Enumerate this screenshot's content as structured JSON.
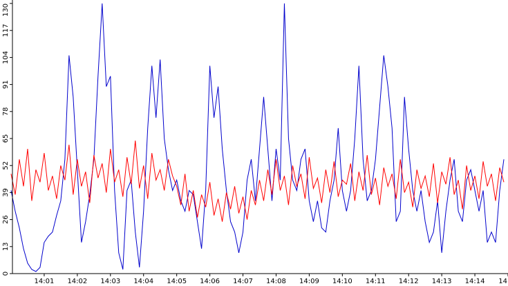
{
  "chart_data": {
    "type": "line",
    "x": [
      0,
      0.125,
      0.25,
      0.375,
      0.5,
      0.625,
      0.75,
      0.875,
      1,
      1.125,
      1.25,
      1.375,
      1.5,
      1.625,
      1.75,
      1.875,
      2,
      2.125,
      2.25,
      2.375,
      2.5,
      2.625,
      2.75,
      2.875,
      3,
      3.125,
      3.25,
      3.375,
      3.5,
      3.625,
      3.75,
      3.875,
      4,
      4.125,
      4.25,
      4.375,
      4.5,
      4.625,
      4.75,
      4.875,
      5,
      5.125,
      5.25,
      5.375,
      5.5,
      5.625,
      5.75,
      5.875,
      6,
      6.125,
      6.25,
      6.375,
      6.5,
      6.625,
      6.75,
      6.875,
      7,
      7.125,
      7.25,
      7.375,
      7.5,
      7.625,
      7.75,
      7.875,
      8,
      8.125,
      8.25,
      8.375,
      8.5,
      8.625,
      8.75,
      8.875,
      9,
      9.125,
      9.25,
      9.375,
      9.5,
      9.625,
      9.75,
      9.875,
      10,
      10.125,
      10.25,
      10.375,
      10.5,
      10.625,
      10.75,
      10.875,
      11,
      11.125,
      11.25,
      11.375,
      11.5,
      11.625,
      11.75,
      11.875,
      12,
      12.125,
      12.25,
      12.375,
      12.5,
      12.625,
      12.75,
      12.875,
      13,
      13.125,
      13.25,
      13.375,
      13.5,
      13.625,
      13.75,
      13.875,
      14,
      14.125,
      14.25,
      14.375,
      14.5,
      14.625,
      14.75,
      14.875
    ],
    "series": [
      {
        "color": "#0000cc",
        "values": [
          40,
          30,
          22,
          12,
          5,
          2,
          1,
          3,
          15,
          18,
          20,
          28,
          35,
          55,
          105,
          85,
          50,
          15,
          25,
          38,
          55,
          95,
          130,
          90,
          95,
          40,
          10,
          2,
          40,
          45,
          20,
          3,
          30,
          70,
          100,
          75,
          103,
          65,
          50,
          40,
          45,
          35,
          30,
          40,
          38,
          25,
          12,
          40,
          100,
          75,
          90,
          60,
          40,
          25,
          20,
          10,
          20,
          45,
          55,
          35,
          60,
          85,
          60,
          35,
          60,
          45,
          130,
          65,
          45,
          40,
          55,
          60,
          35,
          25,
          35,
          22,
          20,
          35,
          45,
          70,
          40,
          30,
          40,
          65,
          100,
          55,
          35,
          40,
          55,
          80,
          105,
          90,
          70,
          25,
          30,
          85,
          60,
          40,
          30,
          40,
          25,
          15,
          20,
          35,
          10,
          30,
          45,
          55,
          30,
          25,
          45,
          50,
          40,
          30,
          40,
          15,
          20,
          15,
          40,
          55
        ]
      },
      {
        "color": "#ff0000",
        "values": [
          48,
          38,
          55,
          42,
          60,
          35,
          50,
          44,
          58,
          40,
          47,
          36,
          52,
          45,
          62,
          38,
          55,
          42,
          49,
          34,
          57,
          46,
          53,
          39,
          60,
          44,
          50,
          37,
          56,
          43,
          64,
          41,
          52,
          36,
          58,
          45,
          50,
          40,
          55,
          47,
          42,
          33,
          48,
          30,
          40,
          27,
          38,
          32,
          44,
          28,
          36,
          25,
          39,
          31,
          42,
          29,
          37,
          26,
          40,
          33,
          45,
          35,
          50,
          38,
          55,
          40,
          47,
          33,
          52,
          42,
          48,
          36,
          56,
          41,
          46,
          34,
          50,
          39,
          54,
          37,
          45,
          43,
          53,
          35,
          49,
          40,
          57,
          38,
          46,
          33,
          51,
          42,
          48,
          36,
          55,
          39,
          44,
          32,
          50,
          41,
          47,
          37,
          53,
          34,
          49,
          43,
          56,
          38,
          45,
          31,
          52,
          40,
          47,
          36,
          54,
          42,
          48,
          35,
          51,
          44
        ]
      }
    ],
    "xlim": [
      0,
      15
    ],
    "xticks": [
      {
        "value": 1,
        "label": "14:01"
      },
      {
        "value": 2,
        "label": "14:02"
      },
      {
        "value": 3,
        "label": "14:03"
      },
      {
        "value": 4,
        "label": "14:04"
      },
      {
        "value": 5,
        "label": "14:05"
      },
      {
        "value": 6,
        "label": "14:06"
      },
      {
        "value": 7,
        "label": "14:07"
      },
      {
        "value": 8,
        "label": "14:08"
      },
      {
        "value": 9,
        "label": "14:09"
      },
      {
        "value": 10,
        "label": "14:10"
      },
      {
        "value": 11,
        "label": "14:11"
      },
      {
        "value": 12,
        "label": "14:12"
      },
      {
        "value": 13,
        "label": "14:13"
      },
      {
        "value": 14,
        "label": "14:14"
      },
      {
        "value": 15,
        "label": "14"
      }
    ],
    "ylim": [
      0,
      130
    ],
    "yticks": [
      0,
      13,
      26,
      39,
      52,
      65,
      78,
      91,
      104,
      117,
      130
    ]
  }
}
